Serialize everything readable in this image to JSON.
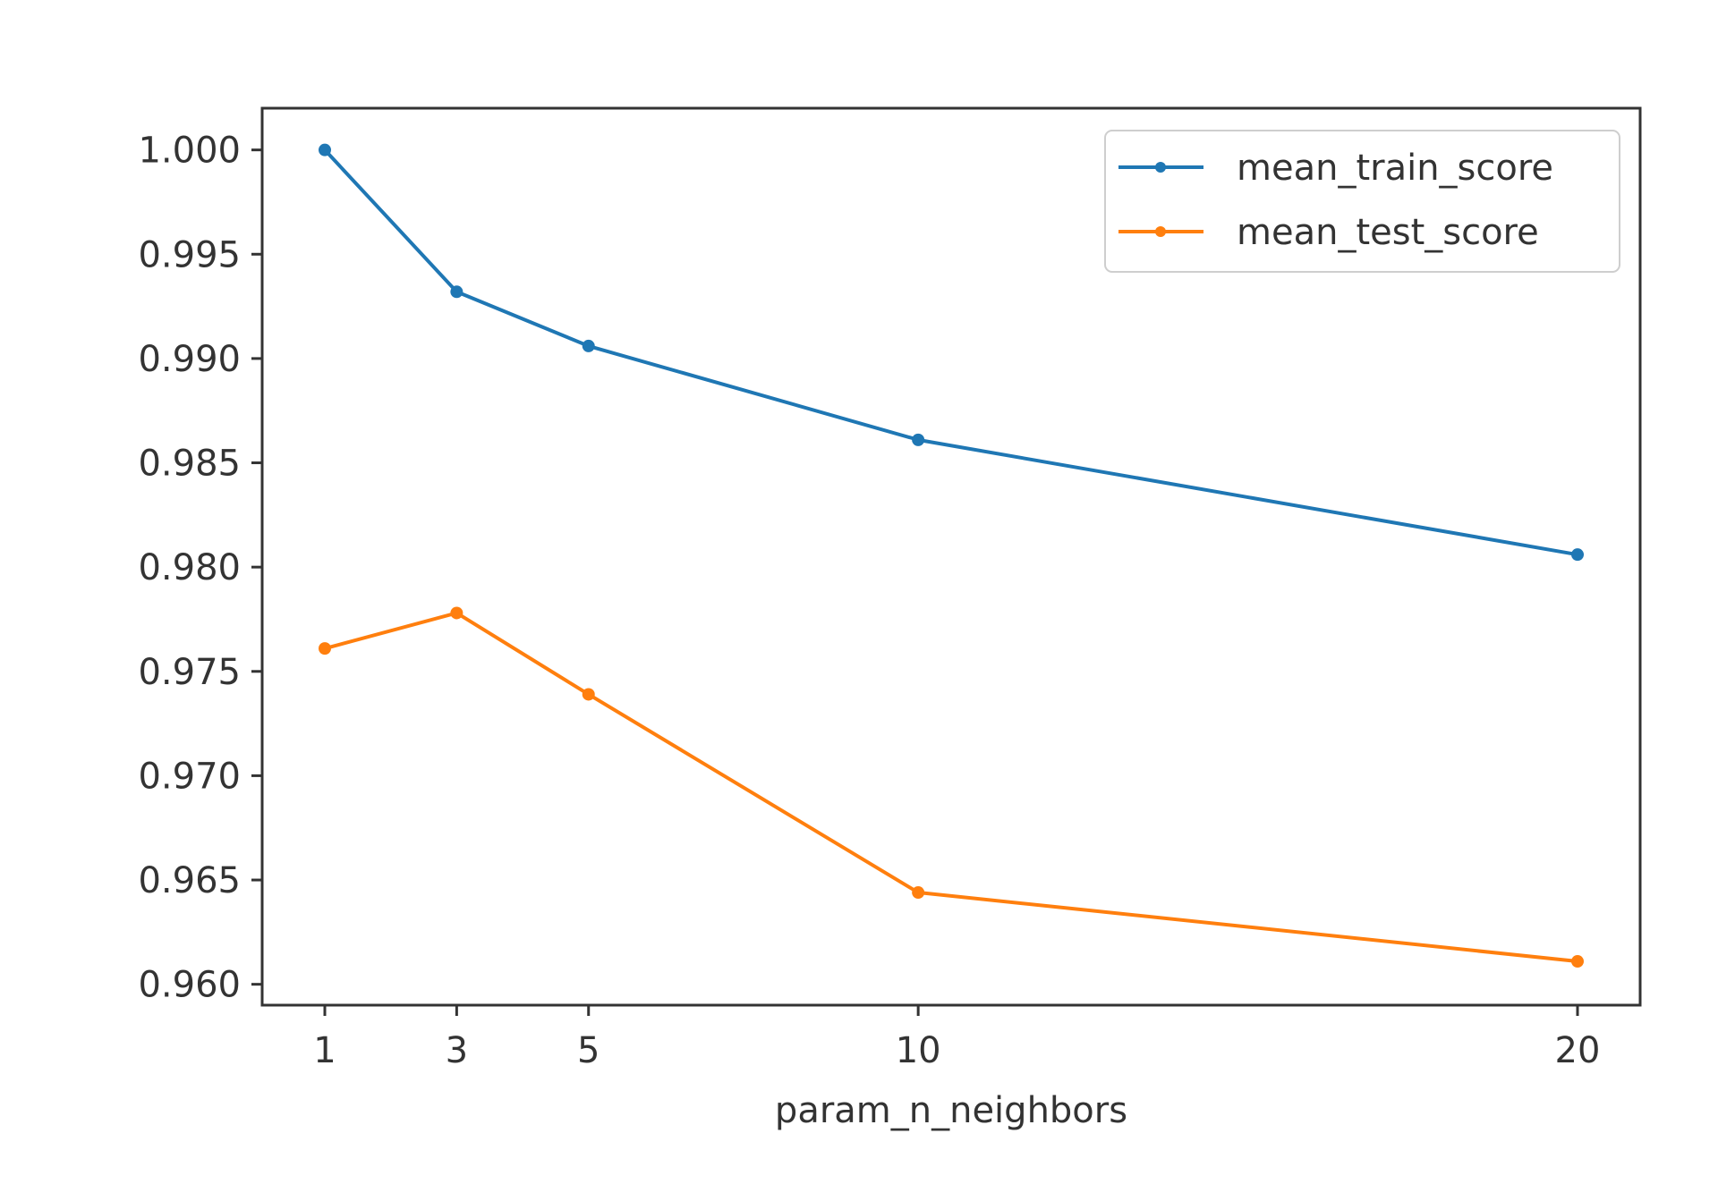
{
  "chart_data": {
    "type": "line",
    "title": "",
    "xlabel": "param_n_neighbors",
    "ylabel": "",
    "x": [
      1,
      3,
      5,
      10,
      20
    ],
    "xticks": [
      "1",
      "3",
      "5",
      "10",
      "20"
    ],
    "yticks": [
      "0.960",
      "0.965",
      "0.970",
      "0.975",
      "0.980",
      "0.985",
      "0.990",
      "0.995",
      "1.000"
    ],
    "xlim": [
      0.05,
      20.95
    ],
    "ylim": [
      0.959,
      1.002
    ],
    "grid": false,
    "legend_position": "top-right",
    "series": [
      {
        "name": "mean_train_score",
        "color": "#1f77b4",
        "marker": "dot",
        "values": [
          1.0,
          0.9932,
          0.9906,
          0.9861,
          0.9806
        ]
      },
      {
        "name": "mean_test_score",
        "color": "#ff7f0e",
        "marker": "dot",
        "values": [
          0.9761,
          0.9778,
          0.9739,
          0.9644,
          0.9611
        ]
      }
    ]
  }
}
